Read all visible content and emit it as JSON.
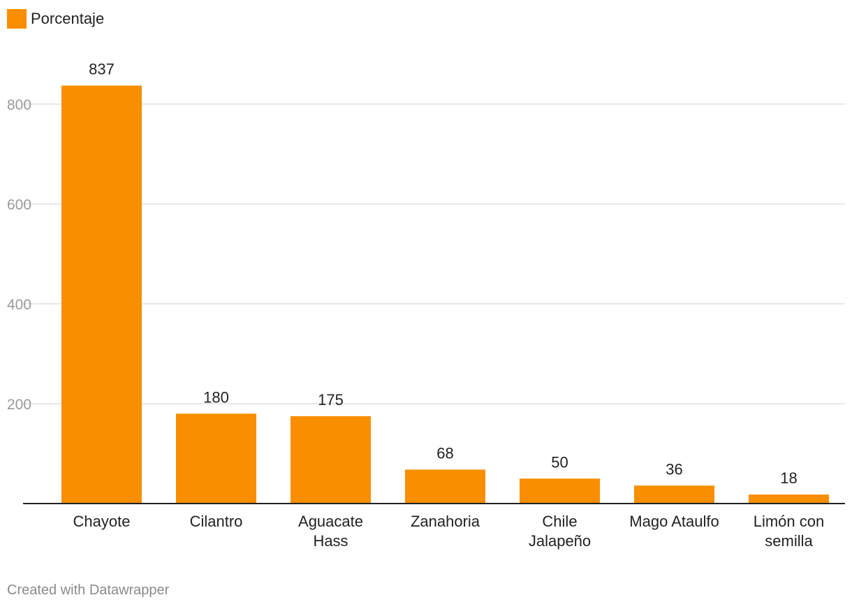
{
  "legend": {
    "label": "Porcentaje",
    "color": "#F98E00"
  },
  "credit": "Created with Datawrapper",
  "chart_data": {
    "type": "bar",
    "categories": [
      [
        "Chayote"
      ],
      [
        "Cilantro"
      ],
      [
        "Aguacate",
        "Hass"
      ],
      [
        "Zanahoria"
      ],
      [
        "Chile",
        "Jalapeño"
      ],
      [
        "Mago Ataulfo"
      ],
      [
        "Limón con",
        "semilla"
      ]
    ],
    "series": [
      {
        "name": "Porcentaje",
        "values": [
          837,
          180,
          175,
          68,
          50,
          36,
          18
        ],
        "color": "#F98E00"
      }
    ],
    "data_labels": [
      "837",
      "180",
      "175",
      "68",
      "50",
      "36",
      "18"
    ],
    "yticks": [
      200,
      400,
      600,
      800
    ],
    "ylim": [
      0,
      800
    ],
    "grid": true,
    "legend_position": "top-left"
  }
}
